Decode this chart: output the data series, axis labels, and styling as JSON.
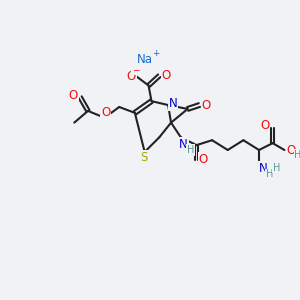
{
  "bg_color": "#f0f2f5",
  "bond_color": "#222222",
  "bond_width": 1.5,
  "atom_colors": {
    "O": "#ee1111",
    "N": "#0000cc",
    "S": "#aaaa00",
    "Na": "#1a6fcc",
    "C": "#222222",
    "H": "#559999",
    "minus": "#ee1111",
    "plus": "#1a6fcc"
  },
  "font_size_atom": 8.5,
  "font_size_small": 7.0,
  "font_size_Na": 8.5
}
